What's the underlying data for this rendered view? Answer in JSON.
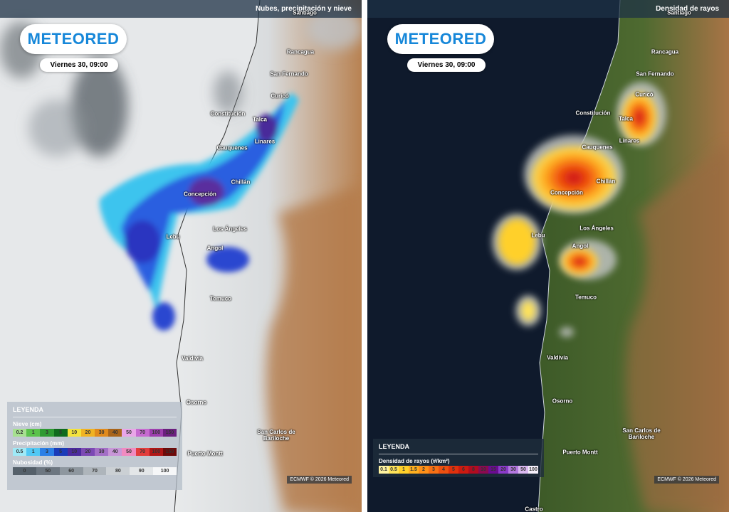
{
  "panels": [
    {
      "header": "Nubes, precipitación y nieve",
      "logo": "METEORED",
      "date": "Viernes 30, 09:00",
      "cities": [
        "Santiago",
        "Rancagua",
        "San Fernando",
        "Curicó",
        "Constitución",
        "Talca",
        "Linares",
        "Cauquenes",
        "Chillán",
        "Concepción",
        "Lebu",
        "Los Ángeles",
        "Angol",
        "Temuco",
        "Valdivia",
        "Osorno",
        "San Carlos de Bariloche",
        "Puerto Montt"
      ],
      "legend": {
        "title": "LEYENDA",
        "scales": [
          {
            "title": "Nieve (cm)",
            "items": [
              {
                "label": "0.2",
                "color": "#a6e08f"
              },
              {
                "label": "1",
                "color": "#5bc24b"
              },
              {
                "label": "3",
                "color": "#2e9a33"
              },
              {
                "label": "5",
                "color": "#106b1e"
              },
              {
                "label": "10",
                "color": "#f4e33c"
              },
              {
                "label": "20",
                "color": "#f0b323"
              },
              {
                "label": "30",
                "color": "#e08a1c"
              },
              {
                "label": "40",
                "color": "#a8641a"
              },
              {
                "label": "50",
                "color": "#e9a6e8"
              },
              {
                "label": "70",
                "color": "#c66bd0"
              },
              {
                "label": "100",
                "color": "#9d3fae"
              },
              {
                "label": "150",
                "color": "#6b1f7e"
              }
            ]
          },
          {
            "title": "Precipitación (mm)",
            "items": [
              {
                "label": "0.5",
                "color": "#9fe9f7"
              },
              {
                "label": "1",
                "color": "#52c8f4"
              },
              {
                "label": "3",
                "color": "#2c7fe6"
              },
              {
                "label": "5",
                "color": "#1a3bb8"
              },
              {
                "label": "10",
                "color": "#4b2a9c"
              },
              {
                "label": "20",
                "color": "#7c49b4"
              },
              {
                "label": "30",
                "color": "#a36fc6"
              },
              {
                "label": "40",
                "color": "#c896d8"
              },
              {
                "label": "50",
                "color": "#f08bc0"
              },
              {
                "label": "70",
                "color": "#e23c3c"
              },
              {
                "label": "100",
                "color": "#b01616"
              },
              {
                "label": "150",
                "color": "#6d0a0a"
              }
            ]
          },
          {
            "title": "Nubosidad (%)",
            "items": [
              {
                "label": "0",
                "color": "#55606a"
              },
              {
                "label": "50",
                "color": "#6d7781"
              },
              {
                "label": "60",
                "color": "#8e979f"
              },
              {
                "label": "70",
                "color": "#aeb5bb"
              },
              {
                "label": "80",
                "color": "#cbd0d4"
              },
              {
                "label": "90",
                "color": "#e3e6e8"
              },
              {
                "label": "100",
                "color": "#f6f7f8"
              }
            ]
          }
        ]
      },
      "credit": "ECMWF © 2026 Meteored"
    },
    {
      "header": "Densidad de rayos",
      "logo": "METEORED",
      "date": "Viernes 30, 09:00",
      "cities": [
        "Santiago",
        "Rancagua",
        "San Fernando",
        "Curicó",
        "Constitución",
        "Talca",
        "Linares",
        "Cauquenes",
        "Chillán",
        "Concepción",
        "Lebu",
        "Los Ángeles",
        "Angol",
        "Temuco",
        "Valdivia",
        "Osorno",
        "San Carlos de Bariloche",
        "Puerto Montt",
        "Castro"
      ],
      "legend": {
        "title": "LEYENDA",
        "scales": [
          {
            "title": "Densidad de rayos (#/km²)",
            "items": [
              {
                "label": "0.1",
                "color": "#fff3a0"
              },
              {
                "label": "0.5",
                "color": "#ffe35a"
              },
              {
                "label": "1",
                "color": "#ffd02a"
              },
              {
                "label": "1.5",
                "color": "#ffb020"
              },
              {
                "label": "2",
                "color": "#ff9018"
              },
              {
                "label": "3",
                "color": "#f87014"
              },
              {
                "label": "4",
                "color": "#ee5010"
              },
              {
                "label": "5",
                "color": "#e0300c"
              },
              {
                "label": "6",
                "color": "#cc1a10"
              },
              {
                "label": "8",
                "color": "#b00c20"
              },
              {
                "label": "10",
                "color": "#8a0a50"
              },
              {
                "label": "15",
                "color": "#6a0c90"
              },
              {
                "label": "20",
                "color": "#8a3ac8"
              },
              {
                "label": "30",
                "color": "#b478e0"
              },
              {
                "label": "50",
                "color": "#dab8f0"
              },
              {
                "label": "100",
                "color": "#f4eefa"
              }
            ]
          }
        ]
      },
      "credit": "ECMWF © 2026 Meteored"
    }
  ]
}
